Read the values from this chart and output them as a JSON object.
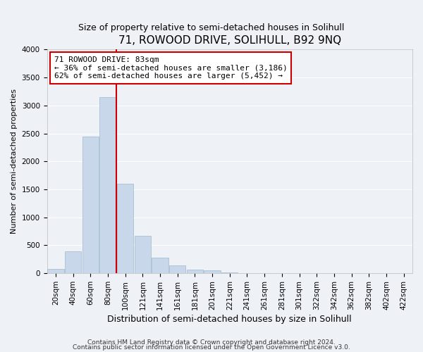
{
  "title": "71, ROWOOD DRIVE, SOLIHULL, B92 9NQ",
  "subtitle": "Size of property relative to semi-detached houses in Solihull",
  "xlabel": "Distribution of semi-detached houses by size in Solihull",
  "ylabel": "Number of semi-detached properties",
  "categories": [
    "20sqm",
    "40sqm",
    "60sqm",
    "80sqm",
    "100sqm",
    "121sqm",
    "141sqm",
    "161sqm",
    "181sqm",
    "201sqm",
    "221sqm",
    "241sqm",
    "261sqm",
    "281sqm",
    "301sqm",
    "322sqm",
    "342sqm",
    "362sqm",
    "382sqm",
    "402sqm",
    "422sqm"
  ],
  "values": [
    75,
    390,
    2450,
    3150,
    1600,
    670,
    280,
    140,
    65,
    50,
    10,
    3,
    0,
    0,
    0,
    0,
    0,
    0,
    0,
    0,
    0
  ],
  "bar_color": "#c8d8ea",
  "bar_edge_color": "#a0b8d0",
  "red_line_color": "#cc0000",
  "red_line_x": 3.47,
  "annotation_line1": "71 ROWOOD DRIVE: 83sqm",
  "annotation_line2": "← 36% of semi-detached houses are smaller (3,186)",
  "annotation_line3": "62% of semi-detached houses are larger (5,452) →",
  "annotation_box_facecolor": "#ffffff",
  "annotation_box_edgecolor": "#cc0000",
  "ylim": [
    0,
    4000
  ],
  "yticks": [
    0,
    500,
    1000,
    1500,
    2000,
    2500,
    3000,
    3500,
    4000
  ],
  "footer1": "Contains HM Land Registry data © Crown copyright and database right 2024.",
  "footer2": "Contains public sector information licensed under the Open Government Licence v3.0.",
  "background_color": "#eef2f7",
  "grid_color": "#ffffff",
  "title_fontsize": 11,
  "subtitle_fontsize": 9,
  "xlabel_fontsize": 9,
  "ylabel_fontsize": 8,
  "tick_fontsize": 7.5,
  "annot_fontsize": 8
}
